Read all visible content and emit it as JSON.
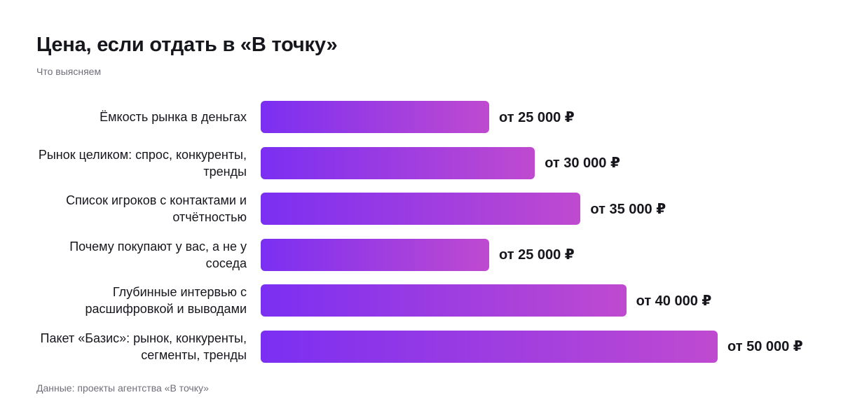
{
  "title": "Цена, если отдать в «В точку»",
  "subtitle": "Что выясняем",
  "source": "Данные: проекты агентства «В точку»",
  "colors": {
    "bar_start": "#7b2ff2",
    "bar_end": "#bf4ad0",
    "text": "#16161d",
    "muted": "#6f6f7a"
  },
  "chart_data": {
    "type": "bar",
    "orientation": "horizontal",
    "categories": [
      "Ёмкость рынка в деньгах",
      "Рынок целиком: спрос, конкуренты, тренды",
      "Список игроков с контактами и отчётностью",
      "Почему покупают у вас, а не у соседа",
      "Глубинные интервью с расшифровкой и выводами",
      "Пакет «Базис»: рынок, конкуренты, сегменты, тренды"
    ],
    "values": [
      25000,
      30000,
      35000,
      25000,
      40000,
      50000
    ],
    "value_labels": [
      "от 25 000 ₽",
      "от 30 000 ₽",
      "от 35 000 ₽",
      "от 25 000 ₽",
      "от 40 000 ₽",
      "от 50 000 ₽"
    ],
    "xlim": [
      0,
      50000
    ],
    "grid": false,
    "legend": "none"
  }
}
